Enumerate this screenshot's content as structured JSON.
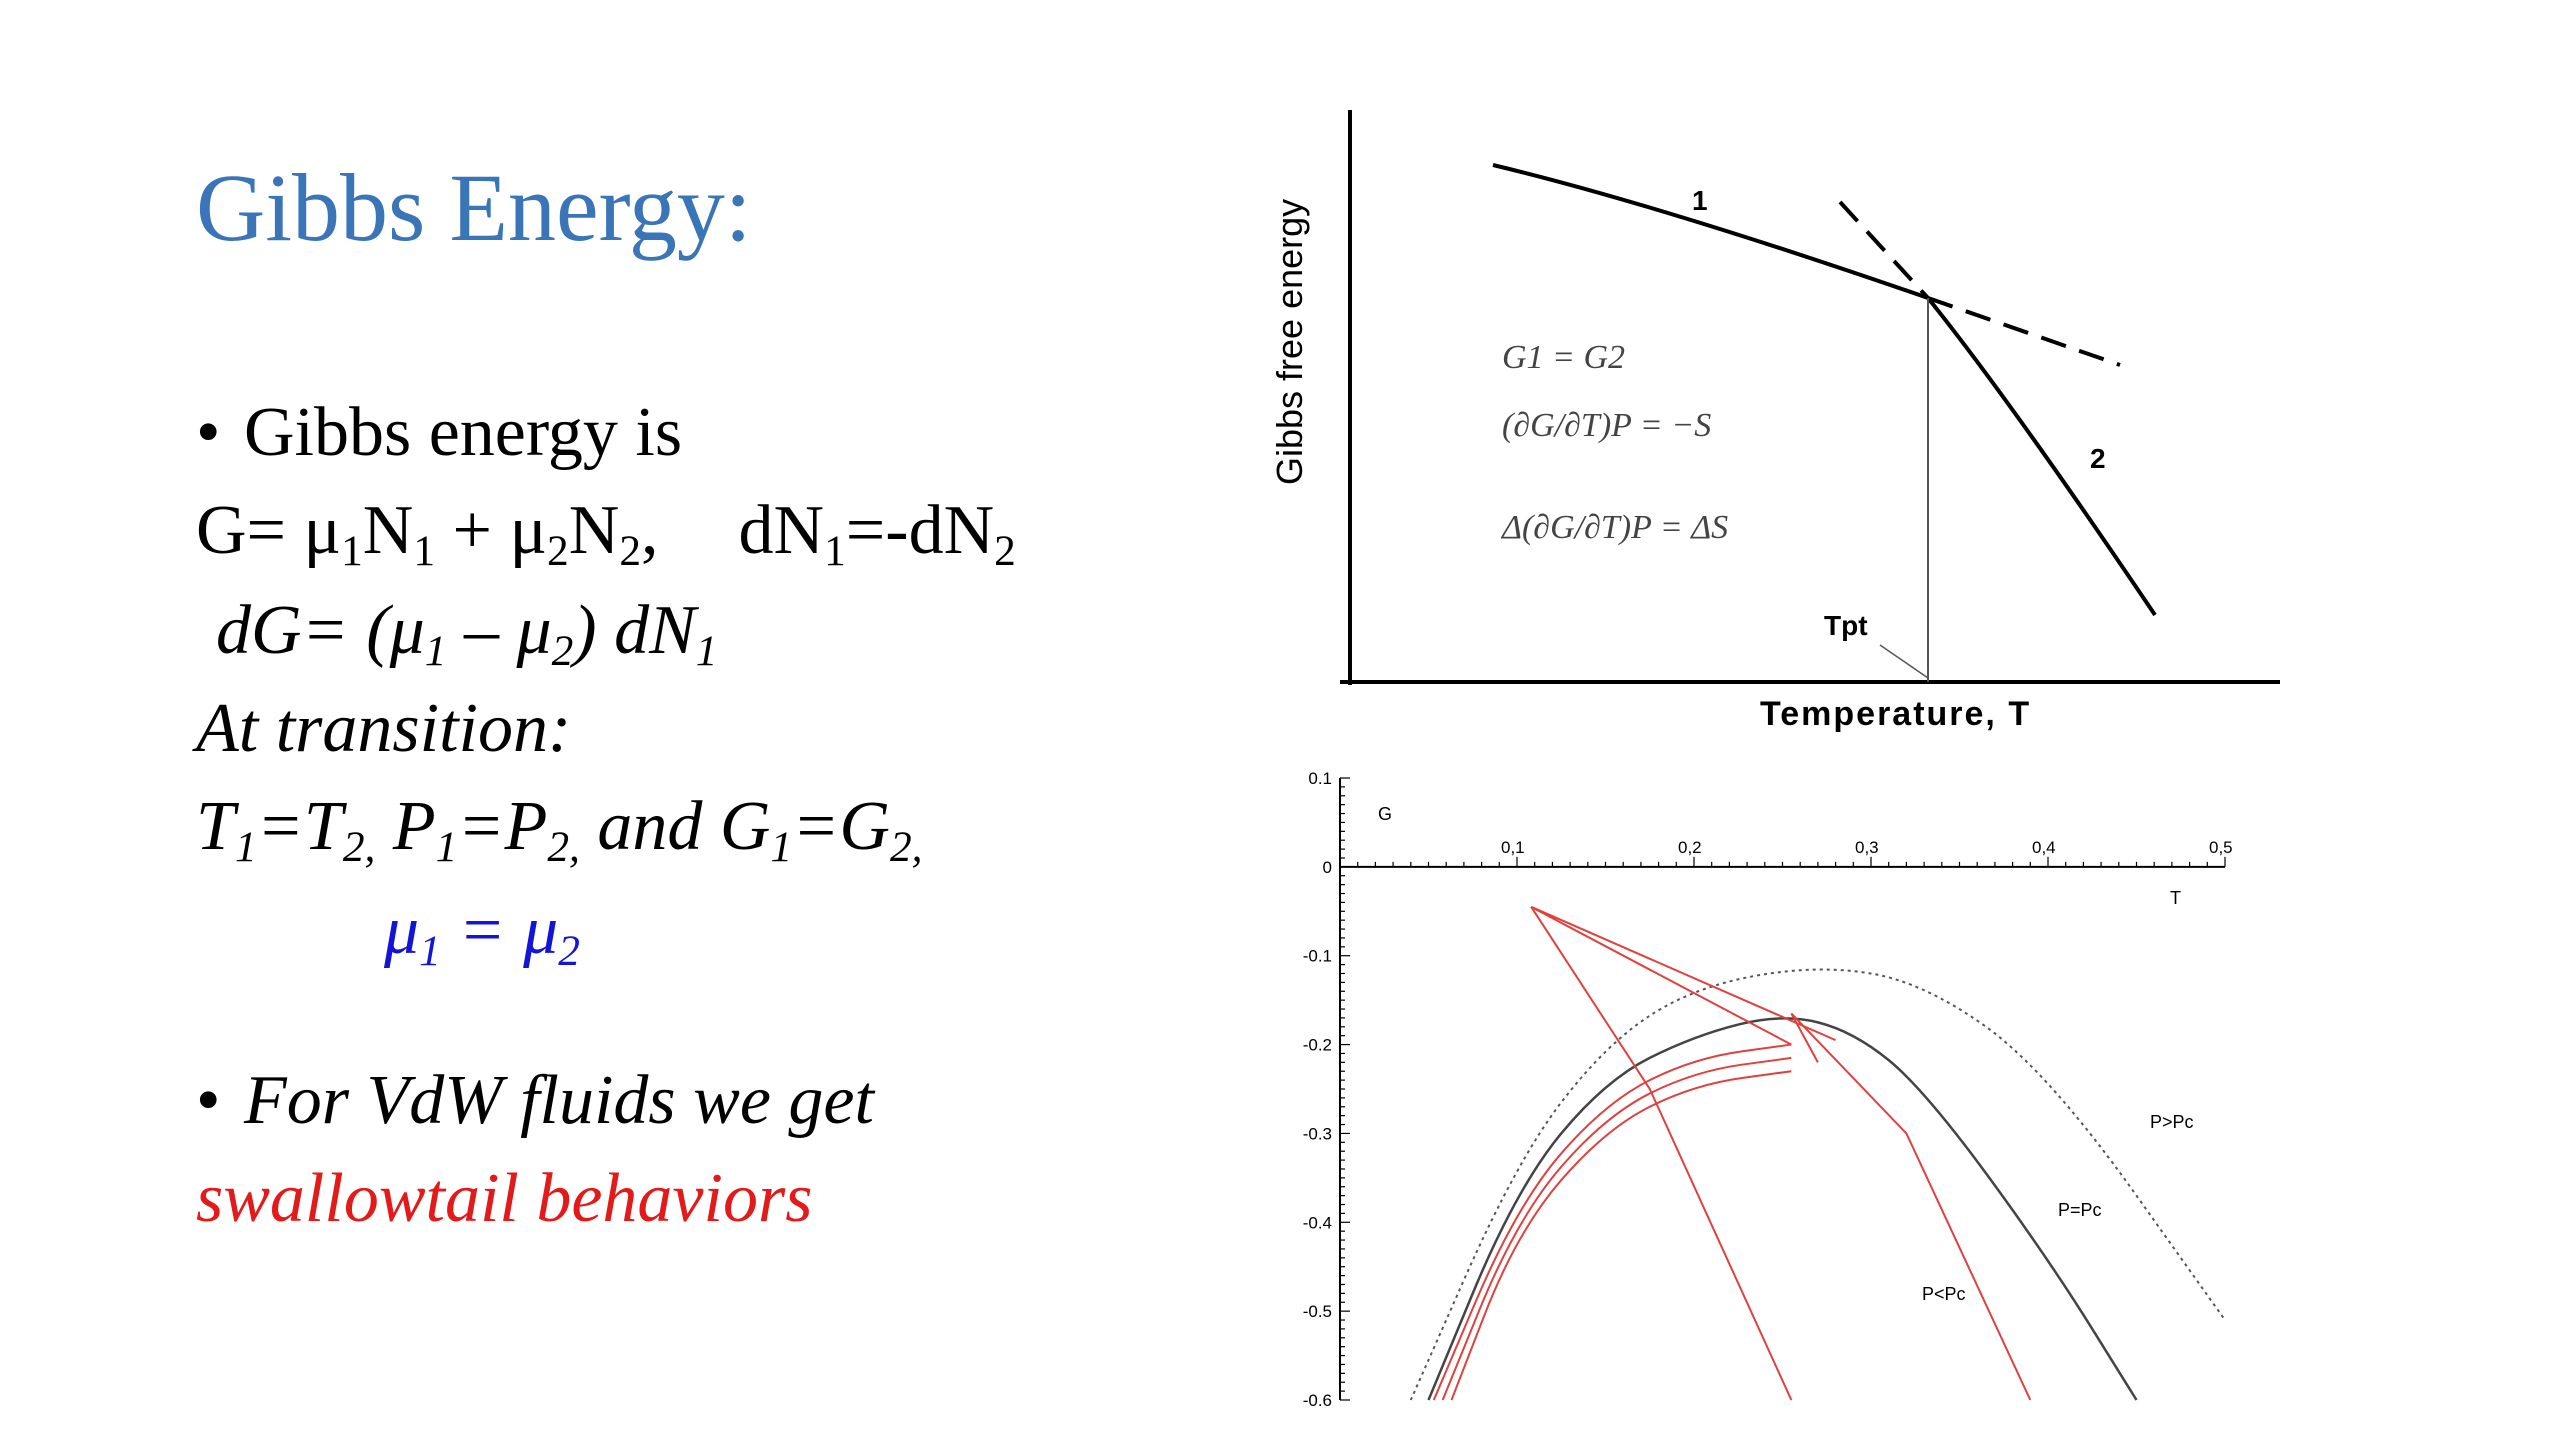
{
  "slide": {
    "title": "Gibbs Energy:",
    "bullet_symbol": "•",
    "bullet1_text": "Gibbs energy is",
    "eq_G": {
      "G": "G= μ",
      "s1": "1",
      "N1": "N",
      "s2": "1",
      "plus": " + μ",
      "s3": "2",
      "N2": "N",
      "s4": "2",
      "sep": ",",
      "dN": "dN",
      "s5": "1",
      "eq": "=-dN",
      "s6": "2"
    },
    "eq_dG": {
      "a": "dG= (μ",
      "s1": "1",
      "b": " – μ",
      "s2": "2",
      "c": ") dN",
      "s3": "1"
    },
    "transition_label": "At transition:",
    "eq_cond": {
      "a": "T",
      "s1": "1",
      "b": "=T",
      "s2": "2,",
      "c": " P",
      "s3": "1",
      "d": "=P",
      "s4": "2,",
      "e": " and G",
      "s5": "1",
      "f": "=G",
      "s6": "2,"
    },
    "eq_mu": {
      "a": "μ",
      "s1": "1",
      "b": " = μ",
      "s2": "2"
    },
    "bullet2_text": "For VdW fluids we get",
    "bullet2_highlight": "swallowtail behaviors"
  },
  "chart_data": [
    {
      "type": "line",
      "title": "",
      "xlabel": "Temperature, T",
      "ylabel": "Gibbs free energy",
      "series": [
        {
          "name": "1",
          "style": "solid then dashed"
        },
        {
          "name": "2",
          "style": "dashed then solid"
        }
      ],
      "marker_label": "Tpt",
      "equations": [
        "G1 = G2",
        "(∂G/∂T)P = −S",
        "Δ(∂G/∂T)P = ΔS"
      ]
    },
    {
      "type": "line",
      "xlabel": "T",
      "ylabel": "G",
      "x_ticks": [
        "0,1",
        "0,2",
        "0,3",
        "0,4",
        "0,5"
      ],
      "y_ticks": [
        "0.1",
        "0",
        "-0.1",
        "-0.2",
        "-0.3",
        "-0.4",
        "-0.5",
        "-0.6"
      ],
      "xlim": [
        0,
        0.5
      ],
      "ylim": [
        -0.6,
        0.1
      ],
      "series": [
        {
          "name": "P>Pc",
          "color": "#555555",
          "style": "dotted",
          "points": [
            [
              0.04,
              -0.6
            ],
            [
              0.1,
              -0.33
            ],
            [
              0.15,
              -0.2
            ],
            [
              0.2,
              -0.135
            ],
            [
              0.27,
              -0.11
            ],
            [
              0.33,
              -0.13
            ],
            [
              0.4,
              -0.23
            ],
            [
              0.5,
              -0.51
            ]
          ]
        },
        {
          "name": "P=Pc",
          "color": "#444444",
          "style": "solid",
          "points": [
            [
              0.05,
              -0.6
            ],
            [
              0.1,
              -0.36
            ],
            [
              0.15,
              -0.24
            ],
            [
              0.2,
              -0.19
            ],
            [
              0.25,
              -0.165
            ],
            [
              0.29,
              -0.185
            ],
            [
              0.33,
              -0.25
            ],
            [
              0.4,
              -0.44
            ],
            [
              0.45,
              -0.6
            ]
          ]
        },
        {
          "name": "P<Pc",
          "color": "#e04040",
          "style": "solid",
          "points": [
            [
              0.05,
              -0.6
            ],
            [
              0.1,
              -0.39
            ],
            [
              0.15,
              -0.27
            ],
            [
              0.2,
              -0.215
            ],
            [
              0.255,
              -0.2
            ],
            [
              0.255,
              -0.165
            ],
            [
              0.4,
              -0.6
            ]
          ]
        }
      ],
      "swallowtail_color": "#e04040"
    }
  ]
}
